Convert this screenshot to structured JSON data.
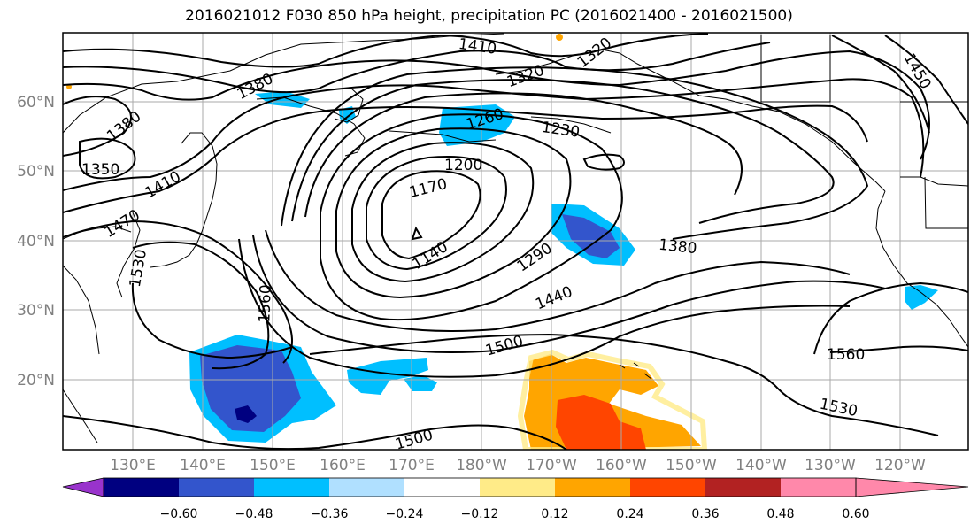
{
  "title": "2016021012 F030 850 hPa height, precipitation PC (2016021400 - 2016021500)",
  "map": {
    "lat_labels": [
      "60°N",
      "50°N",
      "40°N",
      "30°N",
      "20°N"
    ],
    "lon_labels": [
      "130°E",
      "140°E",
      "150°E",
      "160°E",
      "170°E",
      "180°W",
      "170°W",
      "160°W",
      "150°W",
      "140°W",
      "130°W",
      "120°W"
    ],
    "contour_labels": [
      "1410",
      "1320",
      "1320",
      "1450",
      "1380",
      "1380",
      "1350",
      "1410",
      "1470",
      "1530",
      "1260",
      "1230",
      "1200",
      "1170",
      "1140",
      "1290",
      "1380",
      "1440",
      "1500",
      "1560",
      "1500",
      "1560",
      "1530"
    ]
  },
  "colorbar": {
    "ticks": [
      "−0.60",
      "−0.48",
      "−0.36",
      "−0.24",
      "−0.12",
      "0.12",
      "0.24",
      "0.36",
      "0.48",
      "0.60"
    ],
    "colors": [
      "#9933cc",
      "#000080",
      "#3355cc",
      "#00bfff",
      "#b0e0ff",
      "#ffffff",
      "#ffeb88",
      "#ffa500",
      "#ff4500",
      "#b22222",
      "#ff88aa"
    ]
  }
}
